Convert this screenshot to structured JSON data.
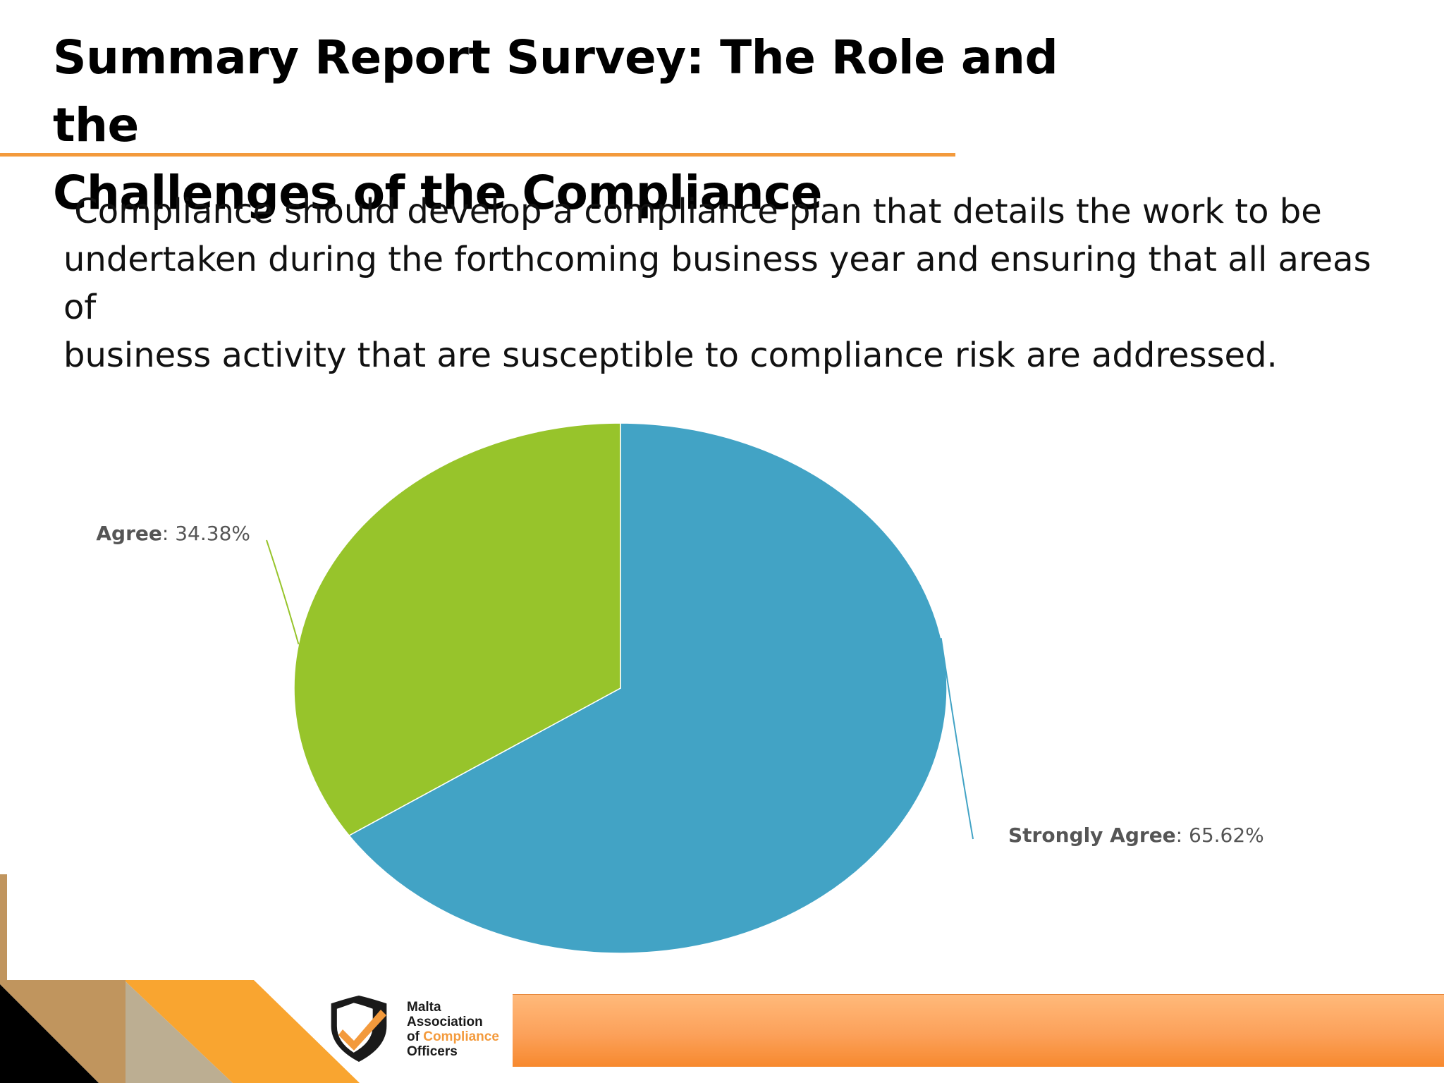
{
  "slide": {
    "title_line1": "Summary Report Survey: The Role and the",
    "title_line2": "Challenges of the Compliance",
    "body": " Compliance should develop a compliance plan that details the work to be\nundertaken during the forthcoming business year and ensuring that all areas of\nbusiness activity that are susceptible to compliance risk are addressed."
  },
  "logo": {
    "line1": "Malta",
    "line2": "Association",
    "line3_prefix": "of",
    "line3_accent": "Compliance",
    "line4": "Officers"
  },
  "colors": {
    "accent_orange": "#f39a3c",
    "strongly_agree": "#42a3c5",
    "agree": "#97c42b"
  },
  "chart_data": {
    "type": "pie",
    "slices": [
      {
        "label": "Strongly Agree",
        "value": 65.62,
        "value_label": "65.62%",
        "color": "#42a3c5"
      },
      {
        "label": "Agree",
        "value": 34.38,
        "value_label": "34.38%",
        "color": "#97c42b"
      }
    ],
    "start_angle": "12 o'clock",
    "direction": "clockwise"
  }
}
